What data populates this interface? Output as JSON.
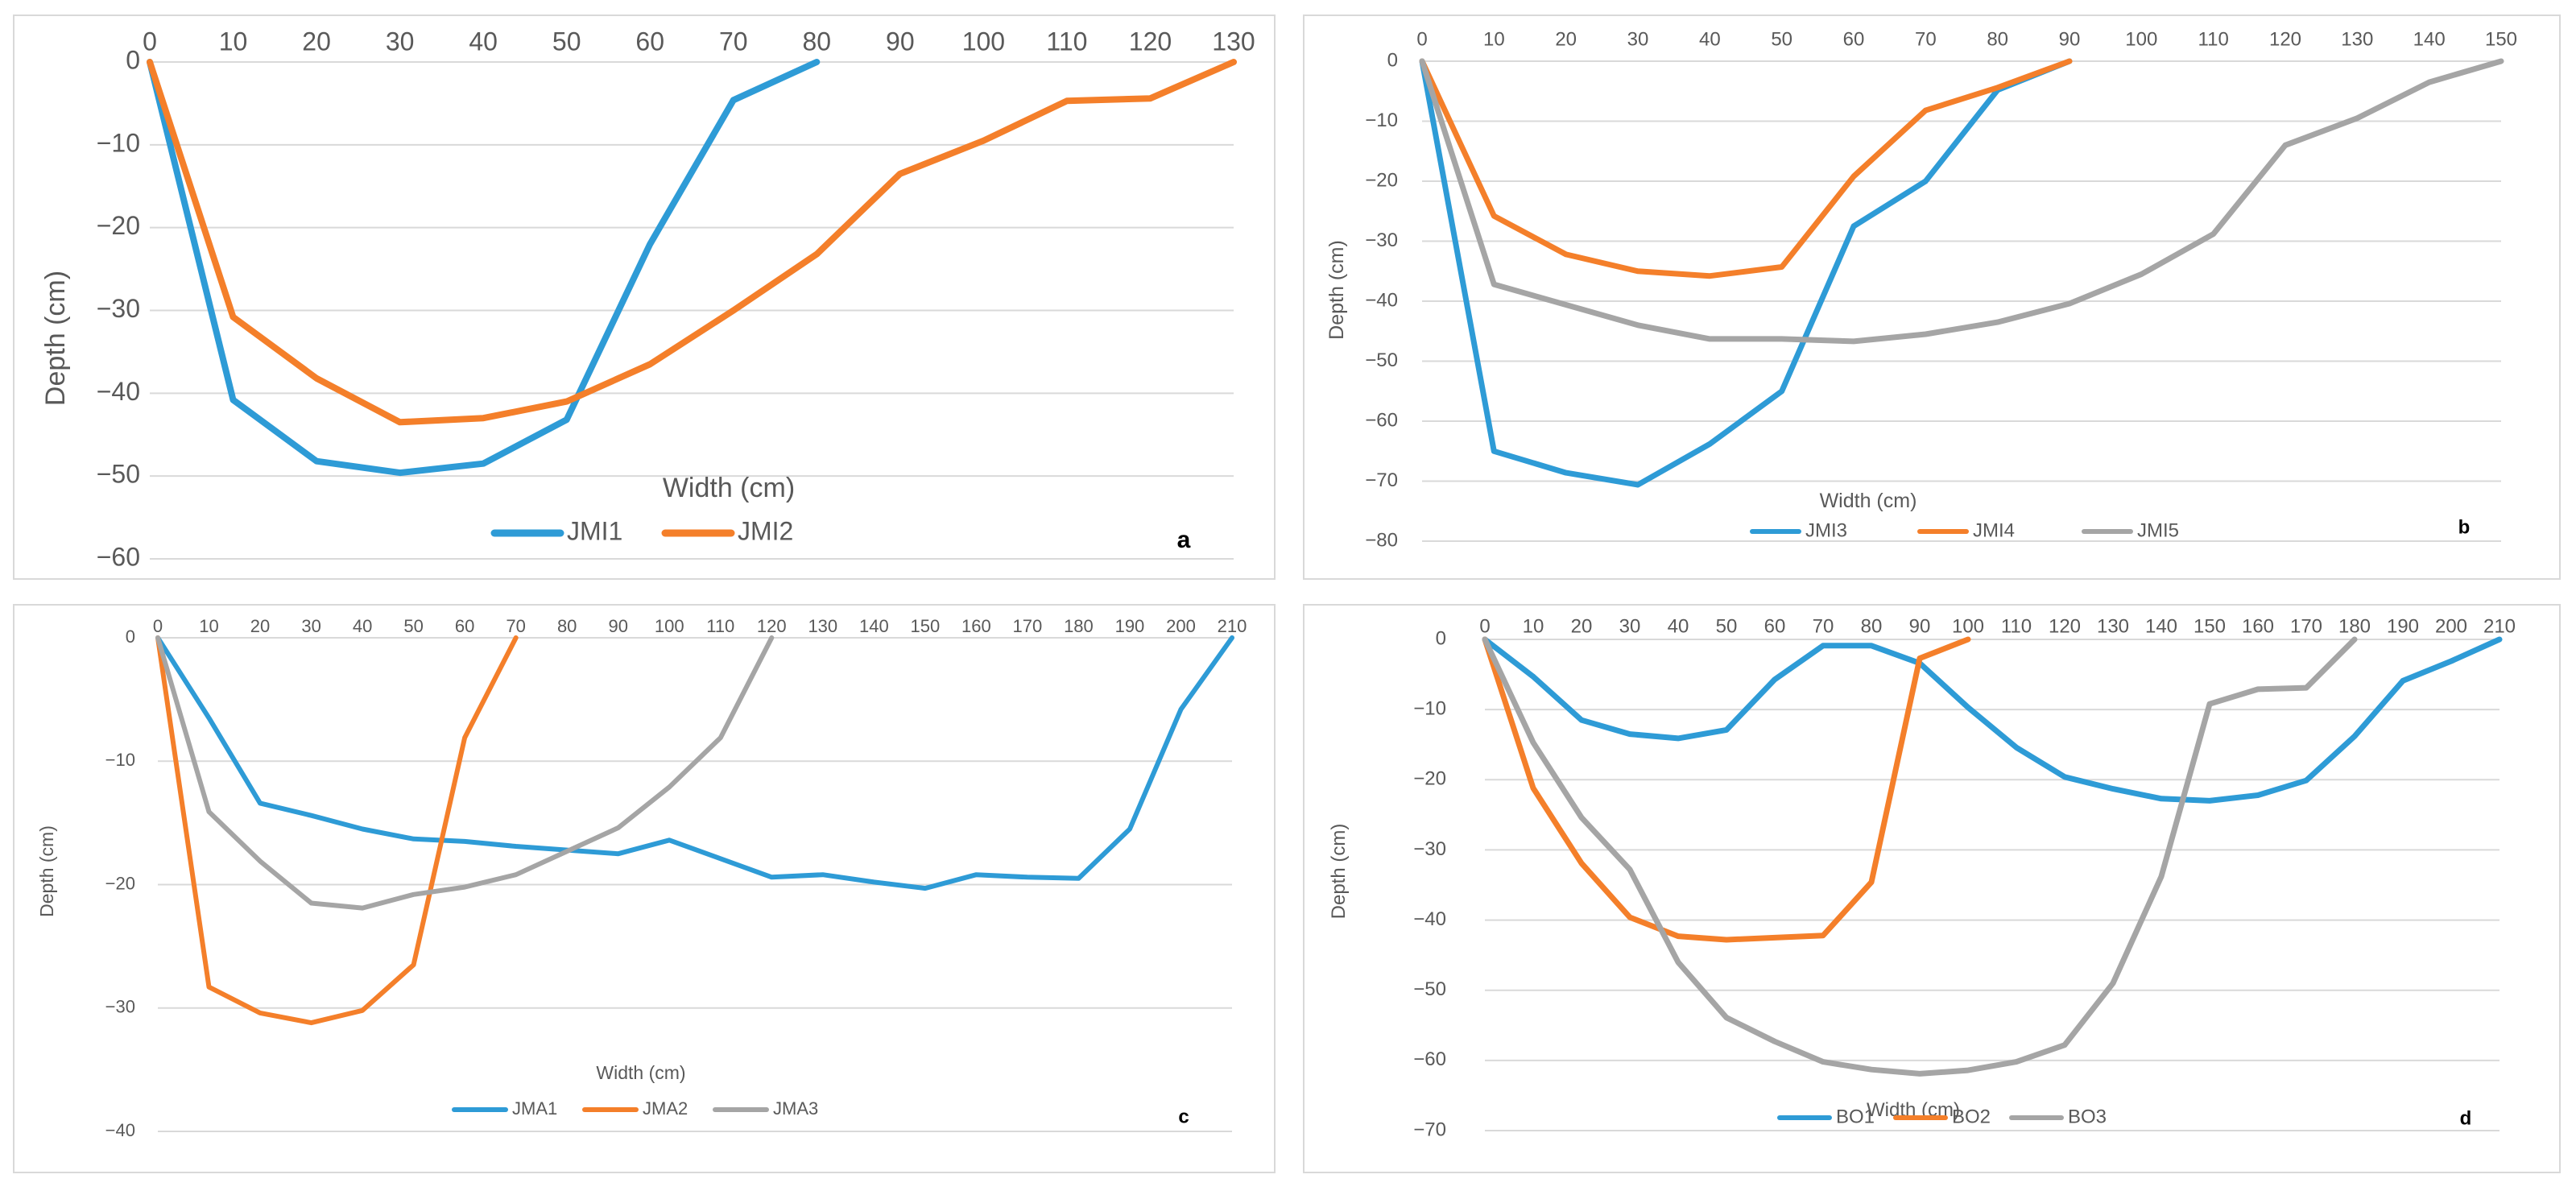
{
  "colors": {
    "s1": "#2e9bd6",
    "s2": "#f47f2a",
    "s3": "#a5a5a5",
    "grid": "#d9d9d9",
    "text": "#595959"
  },
  "chart_data": [
    {
      "id": "a",
      "type": "line",
      "panel_label": "a",
      "xlabel": "Width (cm)",
      "ylabel": "Depth (cm)",
      "xlim": [
        0,
        130
      ],
      "ylim": [
        -60,
        0
      ],
      "xticks": [
        0,
        10,
        20,
        30,
        40,
        50,
        60,
        70,
        80,
        90,
        100,
        110,
        120,
        130
      ],
      "yticks": [
        0,
        -10,
        -20,
        -30,
        -40,
        -50,
        -60
      ],
      "xtick_labels": [
        "0",
        "10",
        "20",
        "30",
        "40",
        "50",
        "60",
        "70",
        "80",
        "90",
        "100",
        "110",
        "120",
        "130"
      ],
      "ytick_labels": [
        "0",
        "−10",
        "−20",
        "−30",
        "−40",
        "−50",
        "−60"
      ],
      "series": [
        {
          "name": "JMI1",
          "x": [
            0,
            10,
            20,
            30,
            40,
            50,
            60,
            70,
            80
          ],
          "y": [
            0,
            -40.8,
            -48.2,
            -49.6,
            -48.5,
            -43.2,
            -22,
            -4.6,
            0
          ]
        },
        {
          "name": "JMI2",
          "x": [
            0,
            10,
            20,
            30,
            40,
            50,
            60,
            70,
            80,
            90,
            100,
            110,
            120,
            130
          ],
          "y": [
            0,
            -30.8,
            -38.2,
            -43.5,
            -43,
            -41,
            -36.5,
            -30,
            -23.2,
            -13.5,
            -9.5,
            -4.7,
            -4.4,
            0
          ]
        }
      ]
    },
    {
      "id": "b",
      "type": "line",
      "panel_label": "b",
      "xlabel": "Width (cm)",
      "ylabel": "Depth (cm)",
      "xlim": [
        0,
        150
      ],
      "ylim": [
        -80,
        0
      ],
      "xticks": [
        0,
        10,
        20,
        30,
        40,
        50,
        60,
        70,
        80,
        90,
        100,
        110,
        120,
        130,
        140,
        150
      ],
      "yticks": [
        0,
        -10,
        -20,
        -30,
        -40,
        -50,
        -60,
        -70,
        -80
      ],
      "xtick_labels": [
        "0",
        "10",
        "20",
        "30",
        "40",
        "50",
        "60",
        "70",
        "80",
        "90",
        "100",
        "110",
        "120",
        "130",
        "140",
        "150"
      ],
      "ytick_labels": [
        "0",
        "−10",
        "−20",
        "−30",
        "−40",
        "−50",
        "−60",
        "−70",
        "−80"
      ],
      "series": [
        {
          "name": "JMI3",
          "x": [
            0,
            10,
            20,
            30,
            40,
            50,
            60,
            70,
            80,
            90
          ],
          "y": [
            0,
            -65,
            -68.6,
            -70.6,
            -63.8,
            -55,
            -27.5,
            -20,
            -4.8,
            0
          ]
        },
        {
          "name": "JMI4",
          "x": [
            0,
            10,
            20,
            30,
            40,
            50,
            60,
            70,
            80,
            90
          ],
          "y": [
            0,
            -25.8,
            -32.2,
            -35,
            -35.8,
            -34.3,
            -19.2,
            -8.2,
            -4.4,
            0
          ]
        },
        {
          "name": "JMI5",
          "x": [
            0,
            10,
            20,
            30,
            40,
            50,
            60,
            70,
            80,
            90,
            100,
            110,
            120,
            130,
            140,
            150
          ],
          "y": [
            0,
            -37.2,
            -40.6,
            -44,
            -46.3,
            -46.3,
            -46.7,
            -45.5,
            -43.5,
            -40.4,
            -35.5,
            -28.8,
            -14,
            -9.5,
            -3.5,
            0
          ]
        }
      ]
    },
    {
      "id": "c",
      "type": "line",
      "panel_label": "c",
      "xlabel": "Width (cm)",
      "ylabel": "Depth (cm)",
      "xlim": [
        0,
        210
      ],
      "ylim": [
        -40,
        0
      ],
      "xticks": [
        0,
        10,
        20,
        30,
        40,
        50,
        60,
        70,
        80,
        90,
        100,
        110,
        120,
        130,
        140,
        150,
        160,
        170,
        180,
        190,
        200,
        210
      ],
      "yticks": [
        0,
        -10,
        -20,
        -30,
        -40
      ],
      "xtick_labels": [
        "0",
        "10",
        "20",
        "30",
        "40",
        "50",
        "60",
        "70",
        "80",
        "90",
        "100",
        "110",
        "120",
        "130",
        "140",
        "150",
        "160",
        "170",
        "180",
        "190",
        "200",
        "210"
      ],
      "ytick_labels": [
        "0",
        "−10",
        "−20",
        "−30",
        "−40"
      ],
      "series": [
        {
          "name": "JMA1",
          "x": [
            0,
            10,
            20,
            30,
            40,
            50,
            60,
            70,
            80,
            90,
            100,
            110,
            120,
            130,
            140,
            150,
            160,
            170,
            180,
            190,
            200,
            210
          ],
          "y": [
            0,
            -6.5,
            -13.4,
            -14.4,
            -15.5,
            -16.3,
            -16.5,
            -16.9,
            -17.2,
            -17.5,
            -16.4,
            -17.9,
            -19.4,
            -19.2,
            -19.8,
            -20.3,
            -19.2,
            -19.4,
            -19.5,
            -15.5,
            -5.8,
            0
          ]
        },
        {
          "name": "JMA2",
          "x": [
            0,
            10,
            20,
            30,
            40,
            50,
            60,
            70
          ],
          "y": [
            0,
            -28.3,
            -30.4,
            -31.2,
            -30.2,
            -26.5,
            -8.1,
            0
          ]
        },
        {
          "name": "JMA3",
          "x": [
            0,
            10,
            20,
            30,
            40,
            50,
            60,
            70,
            80,
            90,
            100,
            110,
            120
          ],
          "y": [
            0,
            -14.1,
            -18.1,
            -21.5,
            -21.9,
            -20.8,
            -20.2,
            -19.2,
            -17.3,
            -15.4,
            -12.1,
            -8.1,
            0
          ]
        }
      ]
    },
    {
      "id": "d",
      "type": "line",
      "panel_label": "d",
      "xlabel": "Width (cm)",
      "ylabel": "Depth (cm)",
      "xlim": [
        0,
        210
      ],
      "ylim": [
        -70,
        0
      ],
      "xticks": [
        0,
        10,
        20,
        30,
        40,
        50,
        60,
        70,
        80,
        90,
        100,
        110,
        120,
        130,
        140,
        150,
        160,
        170,
        180,
        190,
        200,
        210
      ],
      "yticks": [
        0,
        -10,
        -20,
        -30,
        -40,
        -50,
        -60,
        -70
      ],
      "xtick_labels": [
        "0",
        "10",
        "20",
        "30",
        "40",
        "50",
        "60",
        "70",
        "80",
        "90",
        "100",
        "110",
        "120",
        "130",
        "140",
        "150",
        "160",
        "170",
        "180",
        "190",
        "200",
        "210"
      ],
      "ytick_labels": [
        "0",
        "−10",
        "−20",
        "−30",
        "−40",
        "−50",
        "−60",
        "−70"
      ],
      "series": [
        {
          "name": "BO1",
          "x": [
            0,
            10,
            20,
            30,
            40,
            50,
            60,
            70,
            80,
            90,
            100,
            110,
            120,
            130,
            140,
            150,
            160,
            170,
            180,
            190,
            200,
            210
          ],
          "y": [
            0,
            -5.3,
            -11.5,
            -13.5,
            -14.1,
            -12.9,
            -5.7,
            -0.9,
            -0.9,
            -3.4,
            -9.7,
            -15.4,
            -19.6,
            -21.3,
            -22.7,
            -23,
            -22.2,
            -20.1,
            -13.8,
            -5.9,
            -3.1,
            0
          ]
        },
        {
          "name": "BO2",
          "x": [
            0,
            10,
            20,
            30,
            40,
            50,
            60,
            70,
            80,
            90,
            100
          ],
          "y": [
            0,
            -21.2,
            -31.9,
            -39.6,
            -42.3,
            -42.8,
            -42.5,
            -42.2,
            -34.6,
            -2.7,
            0
          ]
        },
        {
          "name": "BO3",
          "x": [
            0,
            10,
            20,
            30,
            40,
            50,
            60,
            70,
            80,
            90,
            100,
            110,
            120,
            130,
            140,
            150,
            160,
            170,
            180
          ],
          "y": [
            0,
            -14.7,
            -25.4,
            -32.8,
            -46,
            -53.9,
            -57.3,
            -60.2,
            -61.3,
            -61.9,
            -61.4,
            -60.2,
            -57.8,
            -49,
            -33.8,
            -9.2,
            -7.1,
            -6.9,
            0
          ]
        }
      ]
    }
  ]
}
